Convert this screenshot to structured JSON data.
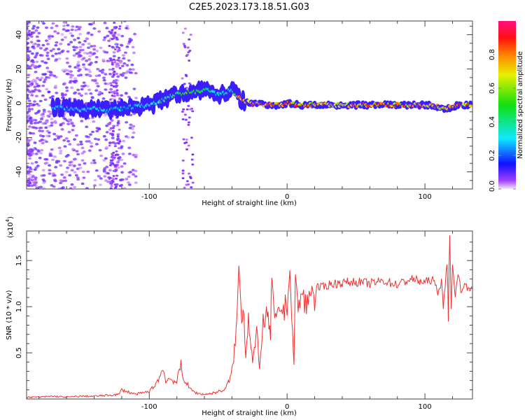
{
  "title": "C2E5.2023.173.18.51.G03",
  "chart_data": [
    {
      "type": "heatmap",
      "xlabel": "Height of straight line (km)",
      "ylabel": "Frequency (Hz)",
      "xlim": [
        -189,
        134.5
      ],
      "ylim": [
        -50,
        48
      ],
      "xticks": [
        -100,
        0,
        100
      ],
      "yticks": [
        -40,
        -20,
        0,
        20,
        40
      ],
      "colorbar": {
        "label": "Normalized spectral amplitude",
        "ticks": [
          "0.0",
          "0.2",
          "0.4",
          "0.6",
          "0.8"
        ],
        "range": [
          0,
          1
        ]
      },
      "ridge": {
        "x": [
          -170,
          -160,
          -150,
          -140,
          -130,
          -120,
          -110,
          -100,
          -95,
          -90,
          -85,
          -80,
          -75,
          -70,
          -65,
          -60,
          -55,
          -50,
          -45,
          -40,
          -35,
          -30,
          -25,
          -20,
          -15,
          -10,
          -5,
          0,
          10,
          20,
          40,
          60,
          80,
          100,
          110,
          115,
          120,
          125,
          134
        ],
        "freq": [
          -2,
          -3,
          -4,
          -3,
          -4,
          -3,
          -2,
          -1,
          0,
          2,
          4,
          5,
          6,
          7,
          7,
          8,
          7,
          5,
          6,
          8,
          3,
          1,
          0,
          0,
          -1,
          -1,
          -1,
          0,
          -1,
          -1,
          -1,
          -1,
          -1,
          -1,
          -2,
          -3,
          -2,
          -1,
          -1
        ],
        "amp": [
          0.25,
          0.3,
          0.35,
          0.35,
          0.3,
          0.3,
          0.3,
          0.35,
          0.4,
          0.45,
          0.45,
          0.5,
          0.55,
          0.5,
          0.5,
          0.45,
          0.4,
          0.35,
          0.4,
          0.35,
          0.75,
          0.9,
          0.95,
          0.95,
          0.9,
          0.85,
          0.8,
          0.85,
          0.85,
          0.8,
          0.8,
          0.8,
          0.85,
          0.85,
          0.85,
          0.8,
          0.85,
          0.85,
          0.85
        ]
      }
    },
    {
      "type": "line",
      "xlabel": "Height of straight line (km)",
      "ylabel": "SNR (10 * v/v)",
      "yscale_label": "(x10",
      "yscale_exp": "4",
      "yscale_close": ")",
      "xlim": [
        -189,
        134.5
      ],
      "ylim": [
        0,
        1.82
      ],
      "xticks": [
        -100,
        0,
        100
      ],
      "yticks": [
        "0.5",
        "1.0",
        "1.5"
      ],
      "color": "#f03030",
      "x": [
        -189,
        -180,
        -170,
        -160,
        -150,
        -140,
        -130,
        -122,
        -120,
        -110,
        -100,
        -96,
        -92,
        -90,
        -88,
        -85,
        -80,
        -77,
        -76,
        -74,
        -70,
        -65,
        -60,
        -55,
        -50,
        -45,
        -42,
        -40,
        -37,
        -35,
        -33,
        -32,
        -30,
        -28,
        -25,
        -22,
        -20,
        -18,
        -15,
        -12,
        -11,
        -9,
        -6,
        -4,
        -2,
        0,
        2,
        4,
        5,
        6,
        8,
        10,
        14,
        18,
        20,
        22,
        25,
        30,
        35,
        40,
        50,
        60,
        70,
        80,
        90,
        100,
        105,
        110,
        112,
        114,
        116,
        117,
        118,
        119,
        120,
        122,
        124,
        126,
        130,
        134
      ],
      "y": [
        0.02,
        0.02,
        0.03,
        0.02,
        0.03,
        0.03,
        0.04,
        0.05,
        0.1,
        0.05,
        0.08,
        0.15,
        0.25,
        0.33,
        0.2,
        0.22,
        0.18,
        0.38,
        0.25,
        0.2,
        0.1,
        0.06,
        0.05,
        0.06,
        0.08,
        0.1,
        0.2,
        0.3,
        0.7,
        1.42,
        0.9,
        1.05,
        0.5,
        0.9,
        0.4,
        0.7,
        0.3,
        0.8,
        0.9,
        0.7,
        1.35,
        0.8,
        0.9,
        1.0,
        0.95,
        1.05,
        1.38,
        0.7,
        0.32,
        1.4,
        0.9,
        1.15,
        1.0,
        1.2,
        1.1,
        1.22,
        1.2,
        1.24,
        1.25,
        1.26,
        1.27,
        1.25,
        1.28,
        1.24,
        1.3,
        1.26,
        1.3,
        1.15,
        1.3,
        1.0,
        1.5,
        0.95,
        1.82,
        0.9,
        1.5,
        1.1,
        1.35,
        1.2,
        1.22,
        1.22
      ]
    }
  ]
}
